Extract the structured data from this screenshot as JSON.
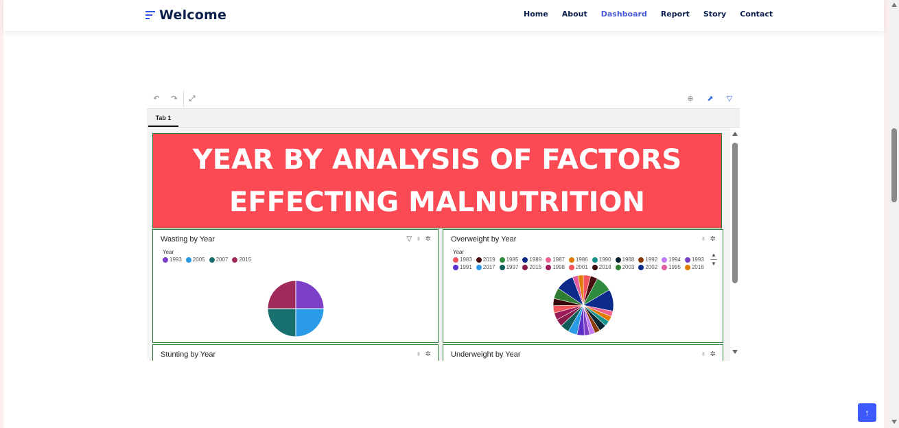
{
  "header": {
    "brand": "Welcome",
    "nav": [
      {
        "label": "Home",
        "active": false
      },
      {
        "label": "About",
        "active": false
      },
      {
        "label": "Dashboard",
        "active": true
      },
      {
        "label": "Report",
        "active": false
      },
      {
        "label": "Story",
        "active": false
      },
      {
        "label": "Contact",
        "active": false
      }
    ]
  },
  "dashboard": {
    "toolbar": {
      "undo_icon": "undo-icon",
      "redo_icon": "redo-icon",
      "expand_icon": "expand-icon",
      "zoom_icon": "zoom-icon",
      "trend_icon": "trend-icon",
      "filter_icon": "filter-icon"
    },
    "tabs": [
      "Tab 1"
    ],
    "banner": "YEAR BY ANALYSIS OF FACTORS EFFECTING MALNUTRITION",
    "widgets": {
      "wasting": {
        "title": "Wasting by Year",
        "legend_title": "Year"
      },
      "overweight": {
        "title": "Overweight by Year",
        "legend_title": "Year"
      },
      "stunting": {
        "title": "Stunting by Year"
      },
      "underweight": {
        "title": "Underweight by Year"
      }
    }
  },
  "chart_data": [
    {
      "type": "pie",
      "legend_title": "Year",
      "categories": [
        "1993",
        "2005",
        "2007",
        "2015"
      ],
      "values": [
        25,
        25,
        25,
        25
      ],
      "colors": [
        "#7b3fc8",
        "#2a9be6",
        "#17706e",
        "#a02a5a"
      ]
    },
    {
      "type": "pie",
      "legend_title": "Year",
      "categories": [
        "1983",
        "2019",
        "1985",
        "1989",
        "1987",
        "1986",
        "1990",
        "1988",
        "1992",
        "1994",
        "1993",
        "1991",
        "2017",
        "1997",
        "2015",
        "1998",
        "2001",
        "2018",
        "2003",
        "2002",
        "1995",
        "2016"
      ],
      "values": [
        4,
        4,
        9,
        12,
        3,
        3,
        3,
        4,
        3,
        3,
        3,
        4,
        5,
        5,
        4,
        4,
        4,
        4,
        6,
        10,
        3,
        3
      ],
      "colors": [
        "#f2545b",
        "#4a0f0f",
        "#2e8b3e",
        "#0b2a8a",
        "#f06292",
        "#e07b00",
        "#17938c",
        "#0c2533",
        "#8b3a0a",
        "#c17cf5",
        "#7b3fc8",
        "#5a2fc8",
        "#2a9be6",
        "#0f5e5a",
        "#8a1a4a",
        "#9c1a5a",
        "#f2545b",
        "#3a0a0a",
        "#2e7d32",
        "#0b2a8a",
        "#e05aa0",
        "#e07b00"
      ]
    }
  ],
  "back_to_top_icon": "arrow-up-icon",
  "back_to_top": "↑"
}
